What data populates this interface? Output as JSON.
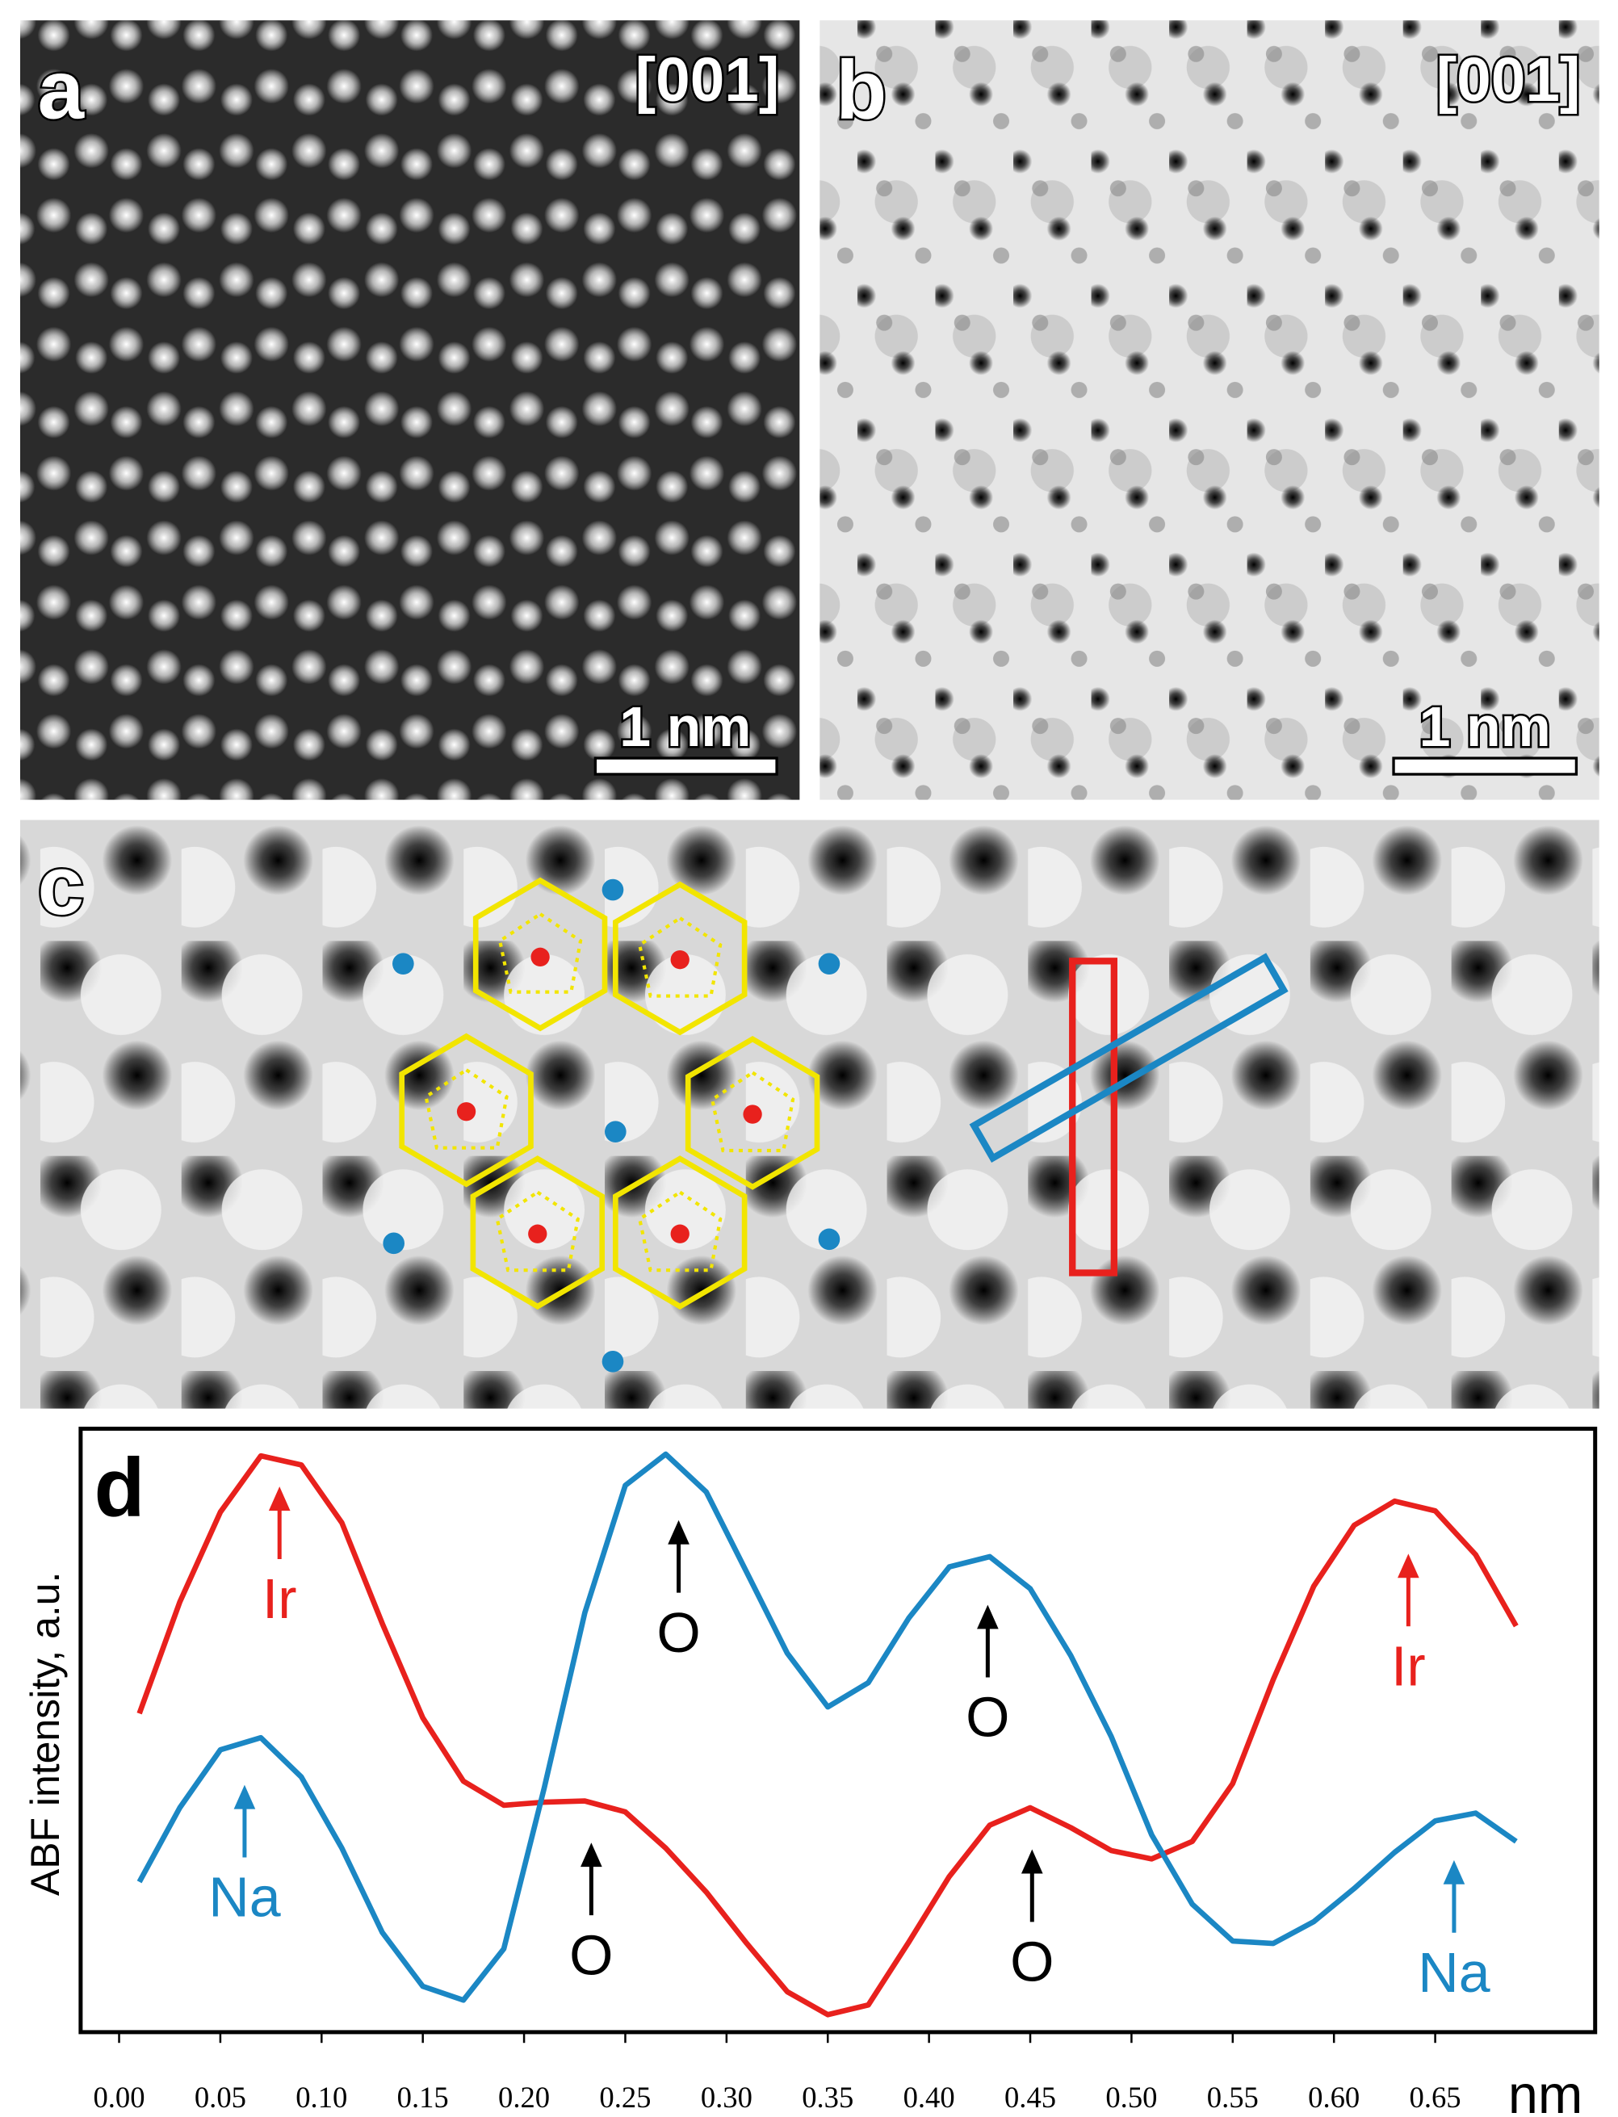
{
  "panels": {
    "a": {
      "label": "a",
      "orientation": "[001]",
      "scale_bar": "1 nm"
    },
    "b": {
      "label": "b",
      "orientation": "[001]",
      "scale_bar": "1 nm"
    },
    "c": {
      "label": "c"
    }
  },
  "chart_data": {
    "type": "line",
    "panel_label": "d",
    "y_label": "ABF intensity, a.u.",
    "x_unit": "nm",
    "x": [
      0.01,
      0.03,
      0.05,
      0.07,
      0.09,
      0.11,
      0.13,
      0.15,
      0.17,
      0.19,
      0.21,
      0.23,
      0.25,
      0.27,
      0.29,
      0.31,
      0.33,
      0.35,
      0.37,
      0.39,
      0.41,
      0.43,
      0.45,
      0.47,
      0.49,
      0.51,
      0.53,
      0.55,
      0.57,
      0.59,
      0.61,
      0.63,
      0.65,
      0.67,
      0.69
    ],
    "series": [
      {
        "color": "#e8211d",
        "values": [
          0.528,
          0.713,
          0.862,
          0.955,
          0.94,
          0.844,
          0.677,
          0.521,
          0.416,
          0.376,
          0.381,
          0.383,
          0.365,
          0.305,
          0.232,
          0.147,
          0.067,
          0.029,
          0.045,
          0.149,
          0.258,
          0.343,
          0.372,
          0.339,
          0.301,
          0.287,
          0.316,
          0.412,
          0.584,
          0.739,
          0.84,
          0.88,
          0.864,
          0.791,
          0.673
        ]
      },
      {
        "color": "#1b87c4",
        "values": [
          0.249,
          0.372,
          0.468,
          0.488,
          0.423,
          0.305,
          0.165,
          0.076,
          0.053,
          0.138,
          0.405,
          0.695,
          0.906,
          0.958,
          0.895,
          0.762,
          0.628,
          0.539,
          0.579,
          0.686,
          0.771,
          0.788,
          0.735,
          0.624,
          0.49,
          0.327,
          0.212,
          0.151,
          0.147,
          0.183,
          0.238,
          0.298,
          0.35,
          0.363,
          0.316
        ]
      }
    ],
    "annotations": [
      {
        "text": "Ir",
        "color": "#e8211d"
      },
      {
        "text": "Ir",
        "color": "#e8211d"
      },
      {
        "text": "Na",
        "color": "#1b87c4"
      },
      {
        "text": "Na",
        "color": "#1b87c4"
      },
      {
        "text": "O",
        "color": "#000000"
      },
      {
        "text": "O",
        "color": "#000000"
      },
      {
        "text": "O",
        "color": "#000000"
      },
      {
        "text": "O",
        "color": "#000000"
      }
    ],
    "xlim": [
      -0.019,
      0.729
    ],
    "xticks": [
      {
        "value": 0,
        "label": "0.00"
      },
      0.05,
      {
        "value": 0.1,
        "label": "0.10"
      },
      0.15,
      {
        "value": 0.2,
        "label": "0.20"
      },
      0.25,
      {
        "value": 0.3,
        "label": "0.30"
      },
      0.35,
      {
        "value": 0.4,
        "label": "0.40"
      },
      0.45,
      {
        "value": 0.5,
        "label": "0.50"
      },
      0.55,
      {
        "value": 0.6,
        "label": "0.60"
      },
      0.65
    ],
    "ylim": [
      0,
      1
    ]
  }
}
